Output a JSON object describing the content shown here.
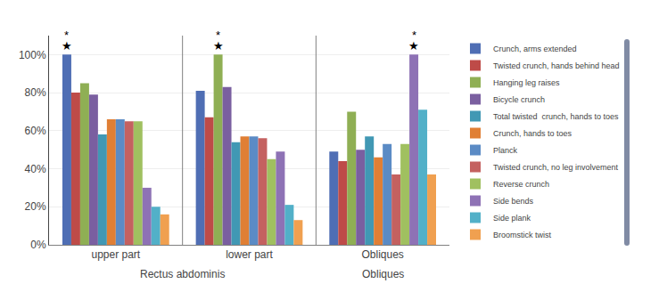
{
  "chart_data": {
    "type": "bar",
    "categories": [
      "upper part",
      "lower part",
      "Obliques"
    ],
    "series": [
      {
        "name": "Crunch, arms extended",
        "color": "#4f6eb4",
        "values": [
          100,
          81,
          49
        ]
      },
      {
        "name": "Twisted crunch, hands behind head",
        "color": "#be4b48",
        "values": [
          80,
          67,
          44
        ]
      },
      {
        "name": "Hanging leg raises",
        "color": "#8faf54",
        "values": [
          85,
          100,
          70
        ]
      },
      {
        "name": "Bicycle crunch",
        "color": "#7a5fa0",
        "values": [
          79,
          83,
          50
        ]
      },
      {
        "name": "Total twisted  crunch, hands to toes",
        "color": "#4198b4",
        "values": [
          58,
          54,
          57
        ]
      },
      {
        "name": "Crunch, hands to toes",
        "color": "#e07f35",
        "values": [
          66,
          57,
          46
        ]
      },
      {
        "name": "Planck",
        "color": "#5b8bc5",
        "values": [
          66,
          57,
          53
        ]
      },
      {
        "name": "Twisted crunch, no leg involvement",
        "color": "#c46160",
        "values": [
          65,
          56,
          37
        ]
      },
      {
        "name": "Reverse crunch",
        "color": "#a0c060",
        "values": [
          65,
          45,
          53
        ]
      },
      {
        "name": "Side bends",
        "color": "#8e72b5",
        "values": [
          30,
          49,
          100
        ]
      },
      {
        "name": "Side plank",
        "color": "#52b0c8",
        "values": [
          20,
          21,
          71
        ]
      },
      {
        "name": "Broomstick twist",
        "color": "#f0a050",
        "values": [
          16,
          13,
          37
        ]
      }
    ],
    "ylim": [
      0,
      110
    ],
    "yticks": [
      {
        "value": 0,
        "label": "0%"
      },
      {
        "value": 20,
        "label": "20%"
      },
      {
        "value": 40,
        "label": "40%"
      },
      {
        "value": 60,
        "label": "60%"
      },
      {
        "value": 80,
        "label": "80%"
      },
      {
        "value": 100,
        "label": "100%"
      }
    ],
    "grid": true,
    "legend": "right",
    "annotations": [
      {
        "text": "Rectus abdominis",
        "categories": [
          "upper part",
          "lower part"
        ]
      },
      {
        "text": "Obliques",
        "categories": [
          "Obliques"
        ]
      },
      {
        "text": "★",
        "category": "upper part",
        "series": "Crunch, arms extended"
      },
      {
        "text": "*",
        "category": "upper part",
        "series": "Crunch, arms extended"
      },
      {
        "text": "★",
        "category": "lower part",
        "series": "Hanging leg raises"
      },
      {
        "text": "*",
        "category": "lower part",
        "series": "Hanging leg raises"
      },
      {
        "text": "★",
        "category": "Obliques",
        "series": "Side bends"
      },
      {
        "text": "*",
        "category": "Obliques",
        "series": "Side bends"
      }
    ]
  }
}
